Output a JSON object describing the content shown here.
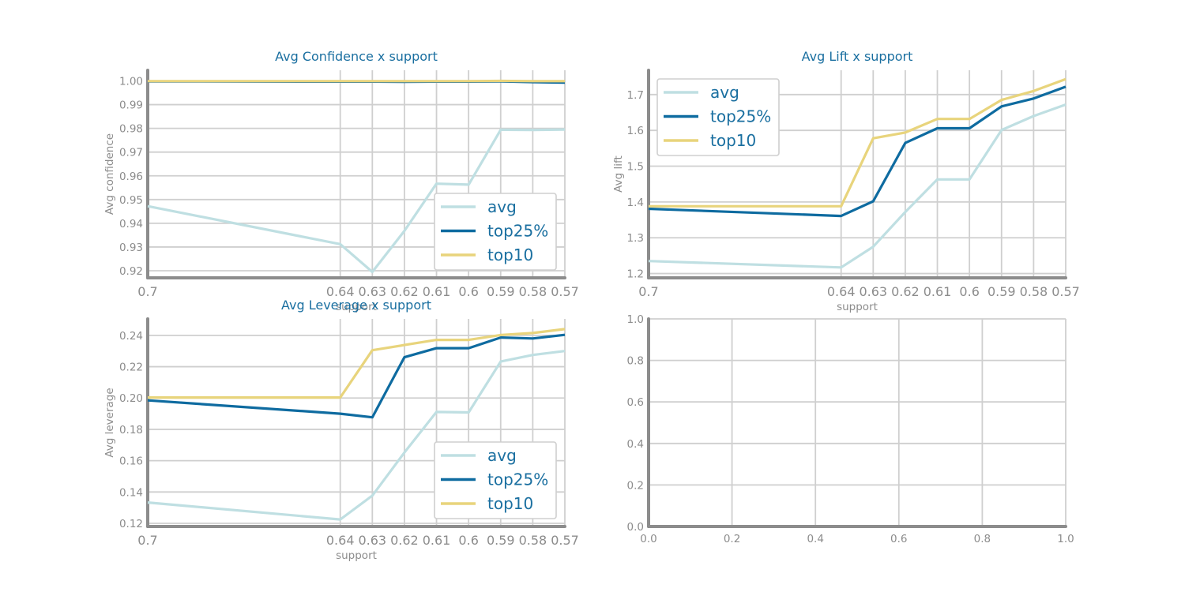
{
  "colors": {
    "avg": "#bfdfe2",
    "top25": "#0e6ba0",
    "top10": "#e8d47c",
    "title": "#1a6fa0",
    "axis": "#8c8c8c",
    "grid": "#cfcfcf"
  },
  "chart_data": [
    {
      "type": "line",
      "title": "Avg Confidence x support",
      "xlabel": "support",
      "ylabel": "Avg confidence",
      "x": [
        0.7,
        0.64,
        0.63,
        0.62,
        0.61,
        0.6,
        0.59,
        0.58,
        0.57
      ],
      "x_tick_labels": [
        "0.7",
        "0.64",
        "0.63",
        "0.62",
        "0.61",
        "0.6",
        "0.59",
        "0.58",
        "0.57"
      ],
      "x_reversed": true,
      "ylim": [
        0.917,
        1.0045
      ],
      "yticks": [
        0.92,
        0.93,
        0.94,
        0.95,
        0.96,
        0.97,
        0.98,
        0.99,
        1.0
      ],
      "ytick_labels": [
        "0.92",
        "0.93",
        "0.94",
        "0.95",
        "0.96",
        "0.97",
        "0.98",
        "0.99",
        "1.00"
      ],
      "legend": "lower-right",
      "series": [
        {
          "name": "avg",
          "color_key": "avg",
          "values": [
            0.9472,
            0.9312,
            0.9195,
            0.9368,
            0.9567,
            0.9563,
            0.9794,
            0.9793,
            0.9795
          ]
        },
        {
          "name": "top25%",
          "color_key": "top25",
          "values": [
            0.9998,
            0.9997,
            0.9997,
            0.9996,
            0.9997,
            0.9997,
            0.9998,
            0.9995,
            0.9993
          ]
        },
        {
          "name": "top10",
          "color_key": "top10",
          "values": [
            0.9999,
            0.9999,
            0.9999,
            0.9999,
            0.9999,
            0.9999,
            1.0,
            0.9999,
            0.9999
          ]
        }
      ]
    },
    {
      "type": "line",
      "title": "Avg Lift x support",
      "xlabel": "support",
      "ylabel": "Avg lift",
      "x": [
        0.7,
        0.64,
        0.63,
        0.62,
        0.61,
        0.6,
        0.59,
        0.58,
        0.57
      ],
      "x_tick_labels": [
        "0.7",
        "0.64",
        "0.63",
        "0.62",
        "0.61",
        "0.6",
        "0.59",
        "0.58",
        "0.57"
      ],
      "x_reversed": true,
      "ylim": [
        1.188,
        1.768
      ],
      "yticks": [
        1.2,
        1.3,
        1.4,
        1.5,
        1.6,
        1.7
      ],
      "ytick_labels": [
        "1.2",
        "1.3",
        "1.4",
        "1.5",
        "1.6",
        "1.7"
      ],
      "legend": "upper-left",
      "series": [
        {
          "name": "avg",
          "color_key": "avg",
          "values": [
            1.235,
            1.217,
            1.275,
            1.372,
            1.463,
            1.463,
            1.601,
            1.64,
            1.672
          ]
        },
        {
          "name": "top25%",
          "color_key": "top25",
          "values": [
            1.381,
            1.361,
            1.402,
            1.565,
            1.606,
            1.606,
            1.667,
            1.689,
            1.722
          ]
        },
        {
          "name": "top10",
          "color_key": "top10",
          "values": [
            1.388,
            1.388,
            1.578,
            1.594,
            1.632,
            1.632,
            1.685,
            1.71,
            1.743
          ]
        }
      ]
    },
    {
      "type": "line",
      "title": "Avg Leverage x support",
      "xlabel": "support",
      "ylabel": "Avg leverage",
      "x": [
        0.7,
        0.64,
        0.63,
        0.62,
        0.61,
        0.6,
        0.59,
        0.58,
        0.57
      ],
      "x_tick_labels": [
        "0.7",
        "0.64",
        "0.63",
        "0.62",
        "0.61",
        "0.6",
        "0.59",
        "0.58",
        "0.57"
      ],
      "x_reversed": true,
      "ylim": [
        0.118,
        0.2505
      ],
      "yticks": [
        0.12,
        0.14,
        0.16,
        0.18,
        0.2,
        0.22,
        0.24
      ],
      "ytick_labels": [
        "0.12",
        "0.14",
        "0.16",
        "0.18",
        "0.20",
        "0.22",
        "0.24"
      ],
      "legend": "lower-right",
      "series": [
        {
          "name": "avg",
          "color_key": "avg",
          "values": [
            0.1333,
            0.1225,
            0.1377,
            0.1652,
            0.1911,
            0.1908,
            0.2233,
            0.2275,
            0.23
          ]
        },
        {
          "name": "top25%",
          "color_key": "top25",
          "values": [
            0.1985,
            0.19,
            0.1877,
            0.226,
            0.2318,
            0.2318,
            0.2386,
            0.238,
            0.2403
          ]
        },
        {
          "name": "top10",
          "color_key": "top10",
          "values": [
            0.2003,
            0.2003,
            0.2305,
            0.2338,
            0.2371,
            0.2371,
            0.2402,
            0.2415,
            0.244
          ]
        }
      ]
    },
    {
      "type": "line",
      "title": "",
      "xlabel": "",
      "ylabel": "",
      "xlim": [
        0,
        1
      ],
      "ylim": [
        0,
        1
      ],
      "xticks": [
        0.0,
        0.2,
        0.4,
        0.6,
        0.8,
        1.0
      ],
      "x_tick_labels": [
        "0.0",
        "0.2",
        "0.4",
        "0.6",
        "0.8",
        "1.0"
      ],
      "yticks": [
        0.0,
        0.2,
        0.4,
        0.6,
        0.8,
        1.0
      ],
      "ytick_labels": [
        "0.0",
        "0.2",
        "0.4",
        "0.6",
        "0.8",
        "1.0"
      ],
      "series": []
    }
  ]
}
